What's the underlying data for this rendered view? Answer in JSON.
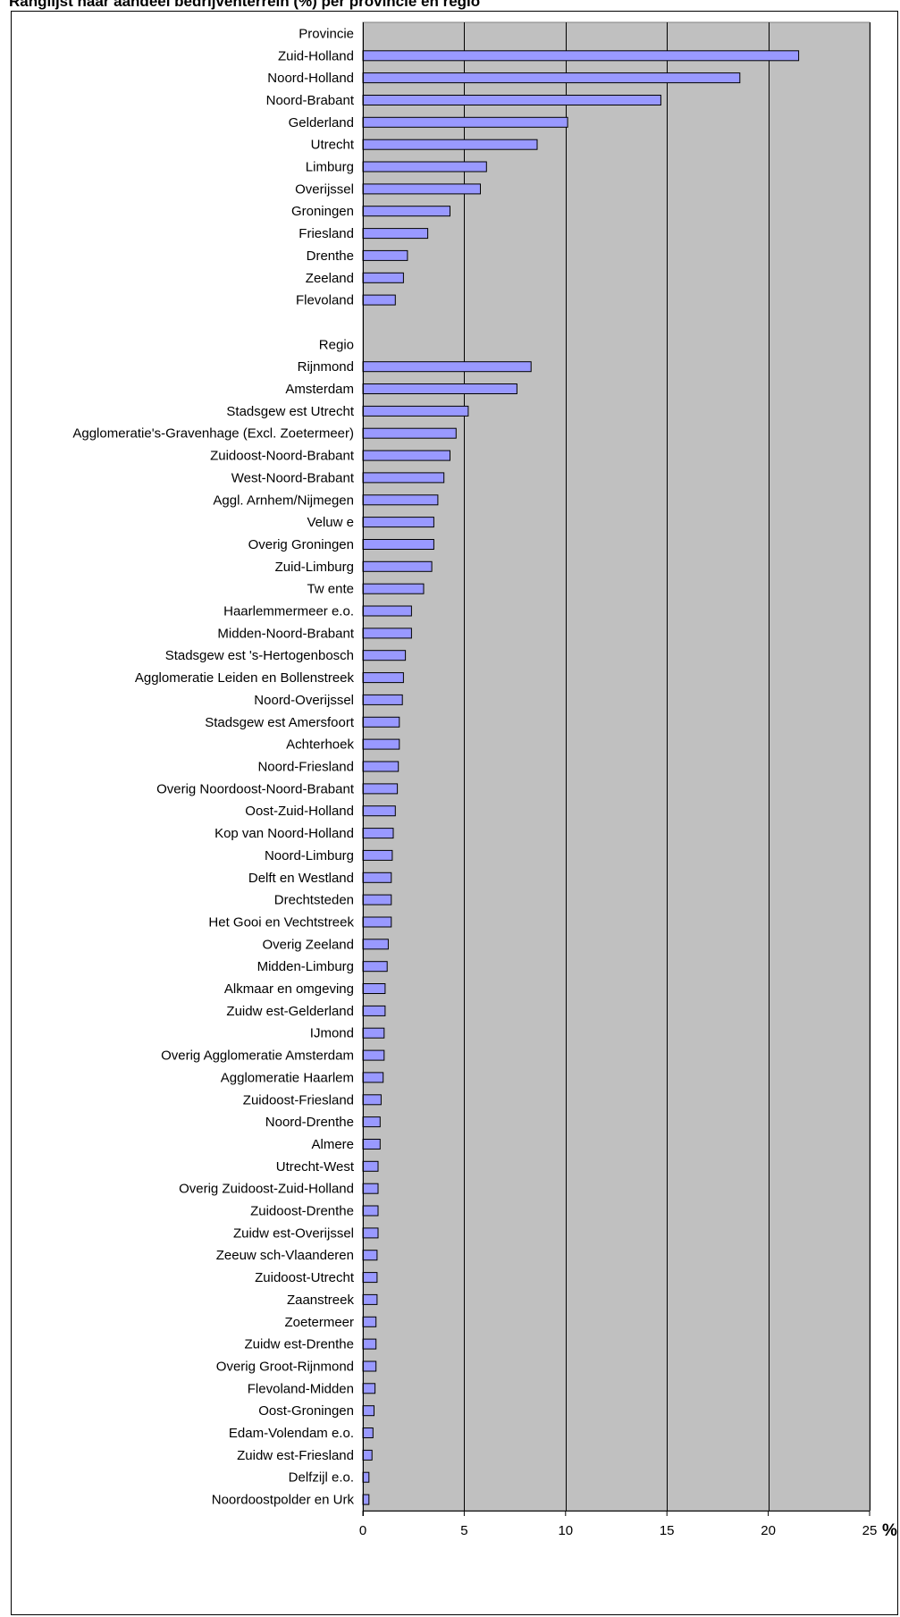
{
  "title": "Ranglijst naar aandeel bedrijventerrein (%) per provincie en regio",
  "chart_data": {
    "type": "bar",
    "orientation": "horizontal",
    "unit_label": "%",
    "xlim": [
      0,
      25
    ],
    "xticks": [
      0,
      5,
      10,
      15,
      20,
      25
    ],
    "grid": true,
    "plot_background": "#c0c0c0",
    "bar_color": "#9999ff",
    "bar_edge_color": "#000000",
    "categories": [
      "Provincie",
      "Zuid-Holland",
      "Noord-Holland",
      "Noord-Brabant",
      "Gelderland",
      "Utrecht",
      "Limburg",
      "Overijssel",
      "Groningen",
      "Friesland",
      "Drenthe",
      "Zeeland",
      "Flevoland",
      "",
      "Regio",
      "Rijnmond",
      "Amsterdam",
      "Stadsgew est Utrecht",
      "Agglomeratie's-Gravenhage (Excl. Zoetermeer)",
      "Zuidoost-Noord-Brabant",
      "West-Noord-Brabant",
      "Aggl. Arnhem/Nijmegen",
      "Veluw e",
      "Overig Groningen",
      "Zuid-Limburg",
      "Tw ente",
      "Haarlemmermeer e.o.",
      "Midden-Noord-Brabant",
      "Stadsgew est 's-Hertogenbosch",
      "Agglomeratie Leiden en Bollenstreek",
      "Noord-Overijssel",
      "Stadsgew est Amersfoort",
      "Achterhoek",
      "Noord-Friesland",
      "Overig Noordoost-Noord-Brabant",
      "Oost-Zuid-Holland",
      "Kop van Noord-Holland",
      "Noord-Limburg",
      "Delft en Westland",
      "Drechtsteden",
      "Het Gooi en Vechtstreek",
      "Overig Zeeland",
      "Midden-Limburg",
      "Alkmaar en omgeving",
      "Zuidw est-Gelderland",
      "IJmond",
      "Overig Agglomeratie Amsterdam",
      "Agglomeratie Haarlem",
      "Zuidoost-Friesland",
      "Noord-Drenthe",
      "Almere",
      "Utrecht-West",
      "Overig Zuidoost-Zuid-Holland",
      "Zuidoost-Drenthe",
      "Zuidw est-Overijssel",
      "Zeeuw sch-Vlaanderen",
      "Zuidoost-Utrecht",
      "Zaanstreek",
      "Zoetermeer",
      "Zuidw est-Drenthe",
      "Overig Groot-Rijnmond",
      "Flevoland-Midden",
      "Oost-Groningen",
      "Edam-Volendam e.o.",
      "Zuidw est-Friesland",
      "Delfzijl e.o.",
      "Noordoostpolder en Urk"
    ],
    "values": [
      null,
      21.5,
      18.6,
      14.7,
      10.1,
      8.6,
      6.1,
      5.8,
      4.3,
      3.2,
      2.2,
      2.0,
      1.6,
      null,
      null,
      8.3,
      7.6,
      5.2,
      4.6,
      4.3,
      4.0,
      3.7,
      3.5,
      3.5,
      3.4,
      3.0,
      2.4,
      2.4,
      2.1,
      2.0,
      1.95,
      1.8,
      1.8,
      1.75,
      1.7,
      1.6,
      1.5,
      1.45,
      1.4,
      1.4,
      1.4,
      1.25,
      1.2,
      1.1,
      1.1,
      1.05,
      1.05,
      1.0,
      0.9,
      0.85,
      0.85,
      0.75,
      0.75,
      0.75,
      0.75,
      0.7,
      0.7,
      0.7,
      0.65,
      0.65,
      0.65,
      0.6,
      0.55,
      0.5,
      0.45,
      0.3,
      0.3
    ]
  }
}
